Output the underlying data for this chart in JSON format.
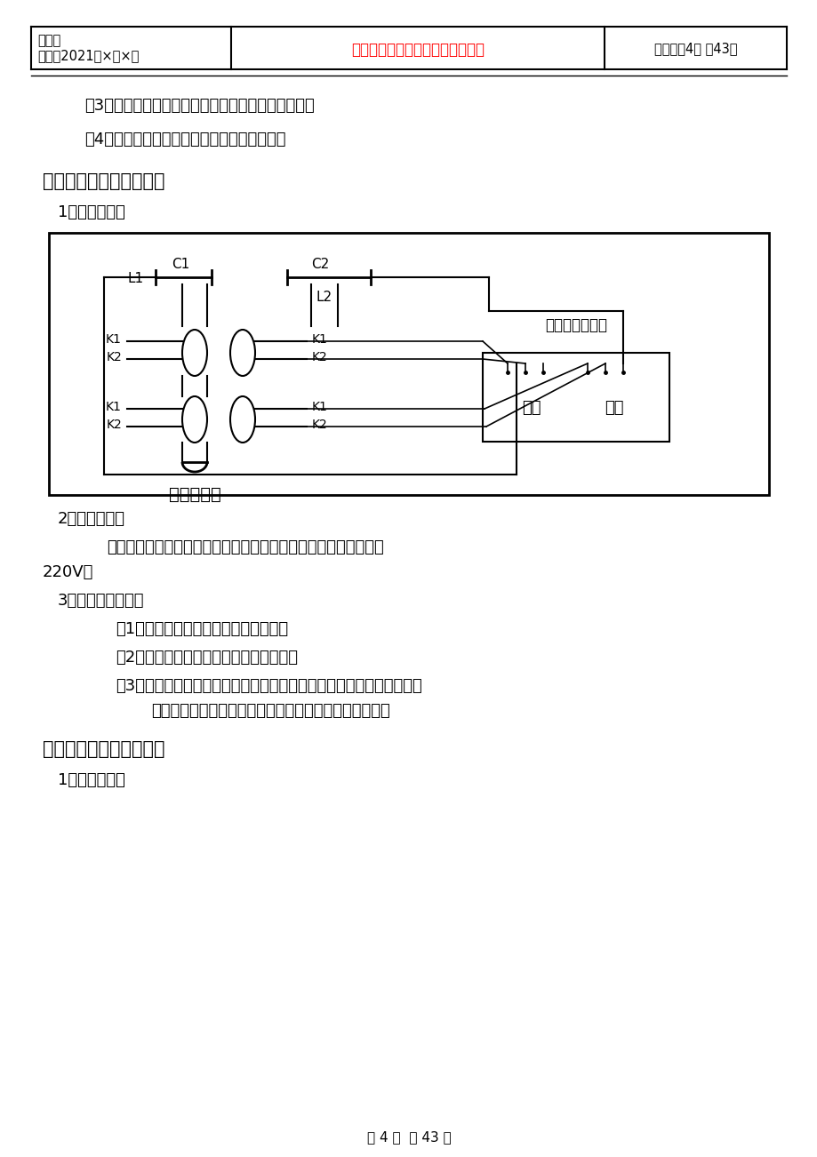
{
  "bg_color": "#ffffff",
  "header": {
    "col1_line1": "编号：",
    "col1_line2": "时间：2021年×月×日",
    "col2_red": "书山有路勤为径，学海无涯苦作舟",
    "col3": "页码：第4页 共43页"
  },
  "footer": "第 4 页  共 43 页"
}
